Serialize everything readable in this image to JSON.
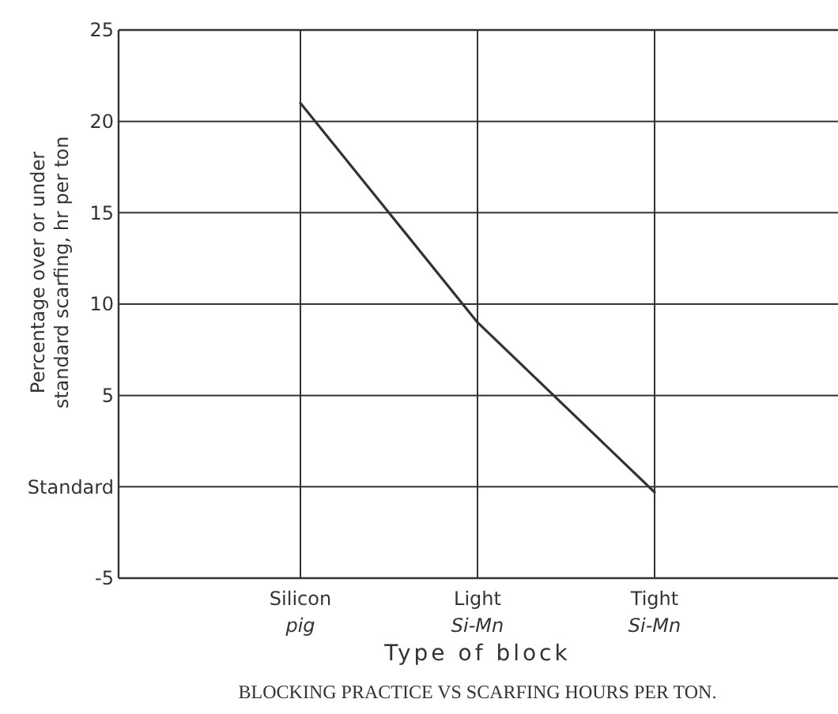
{
  "chart_data": {
    "type": "line",
    "xlabel": "Type of block",
    "ylabel": "Percentage over or under\nstandard scarfing, hr per ton",
    "annotations": [
      "BLOCKING PRACTICE VS SCARFING HOURS PER TON."
    ],
    "categories": [
      "Silicon\npig",
      "Light\nSi-Mn",
      "Tight\nSi-Mn"
    ],
    "series": [
      {
        "color": "#333333",
        "values": [
          21,
          9,
          -0.3
        ]
      }
    ],
    "ylim": [
      -5,
      25
    ],
    "yticks": [
      -5,
      {
        "value": 0,
        "label": "Standard"
      },
      5,
      10,
      15,
      20,
      25
    ],
    "grid": true,
    "marker": "none",
    "line_style": "solid"
  }
}
